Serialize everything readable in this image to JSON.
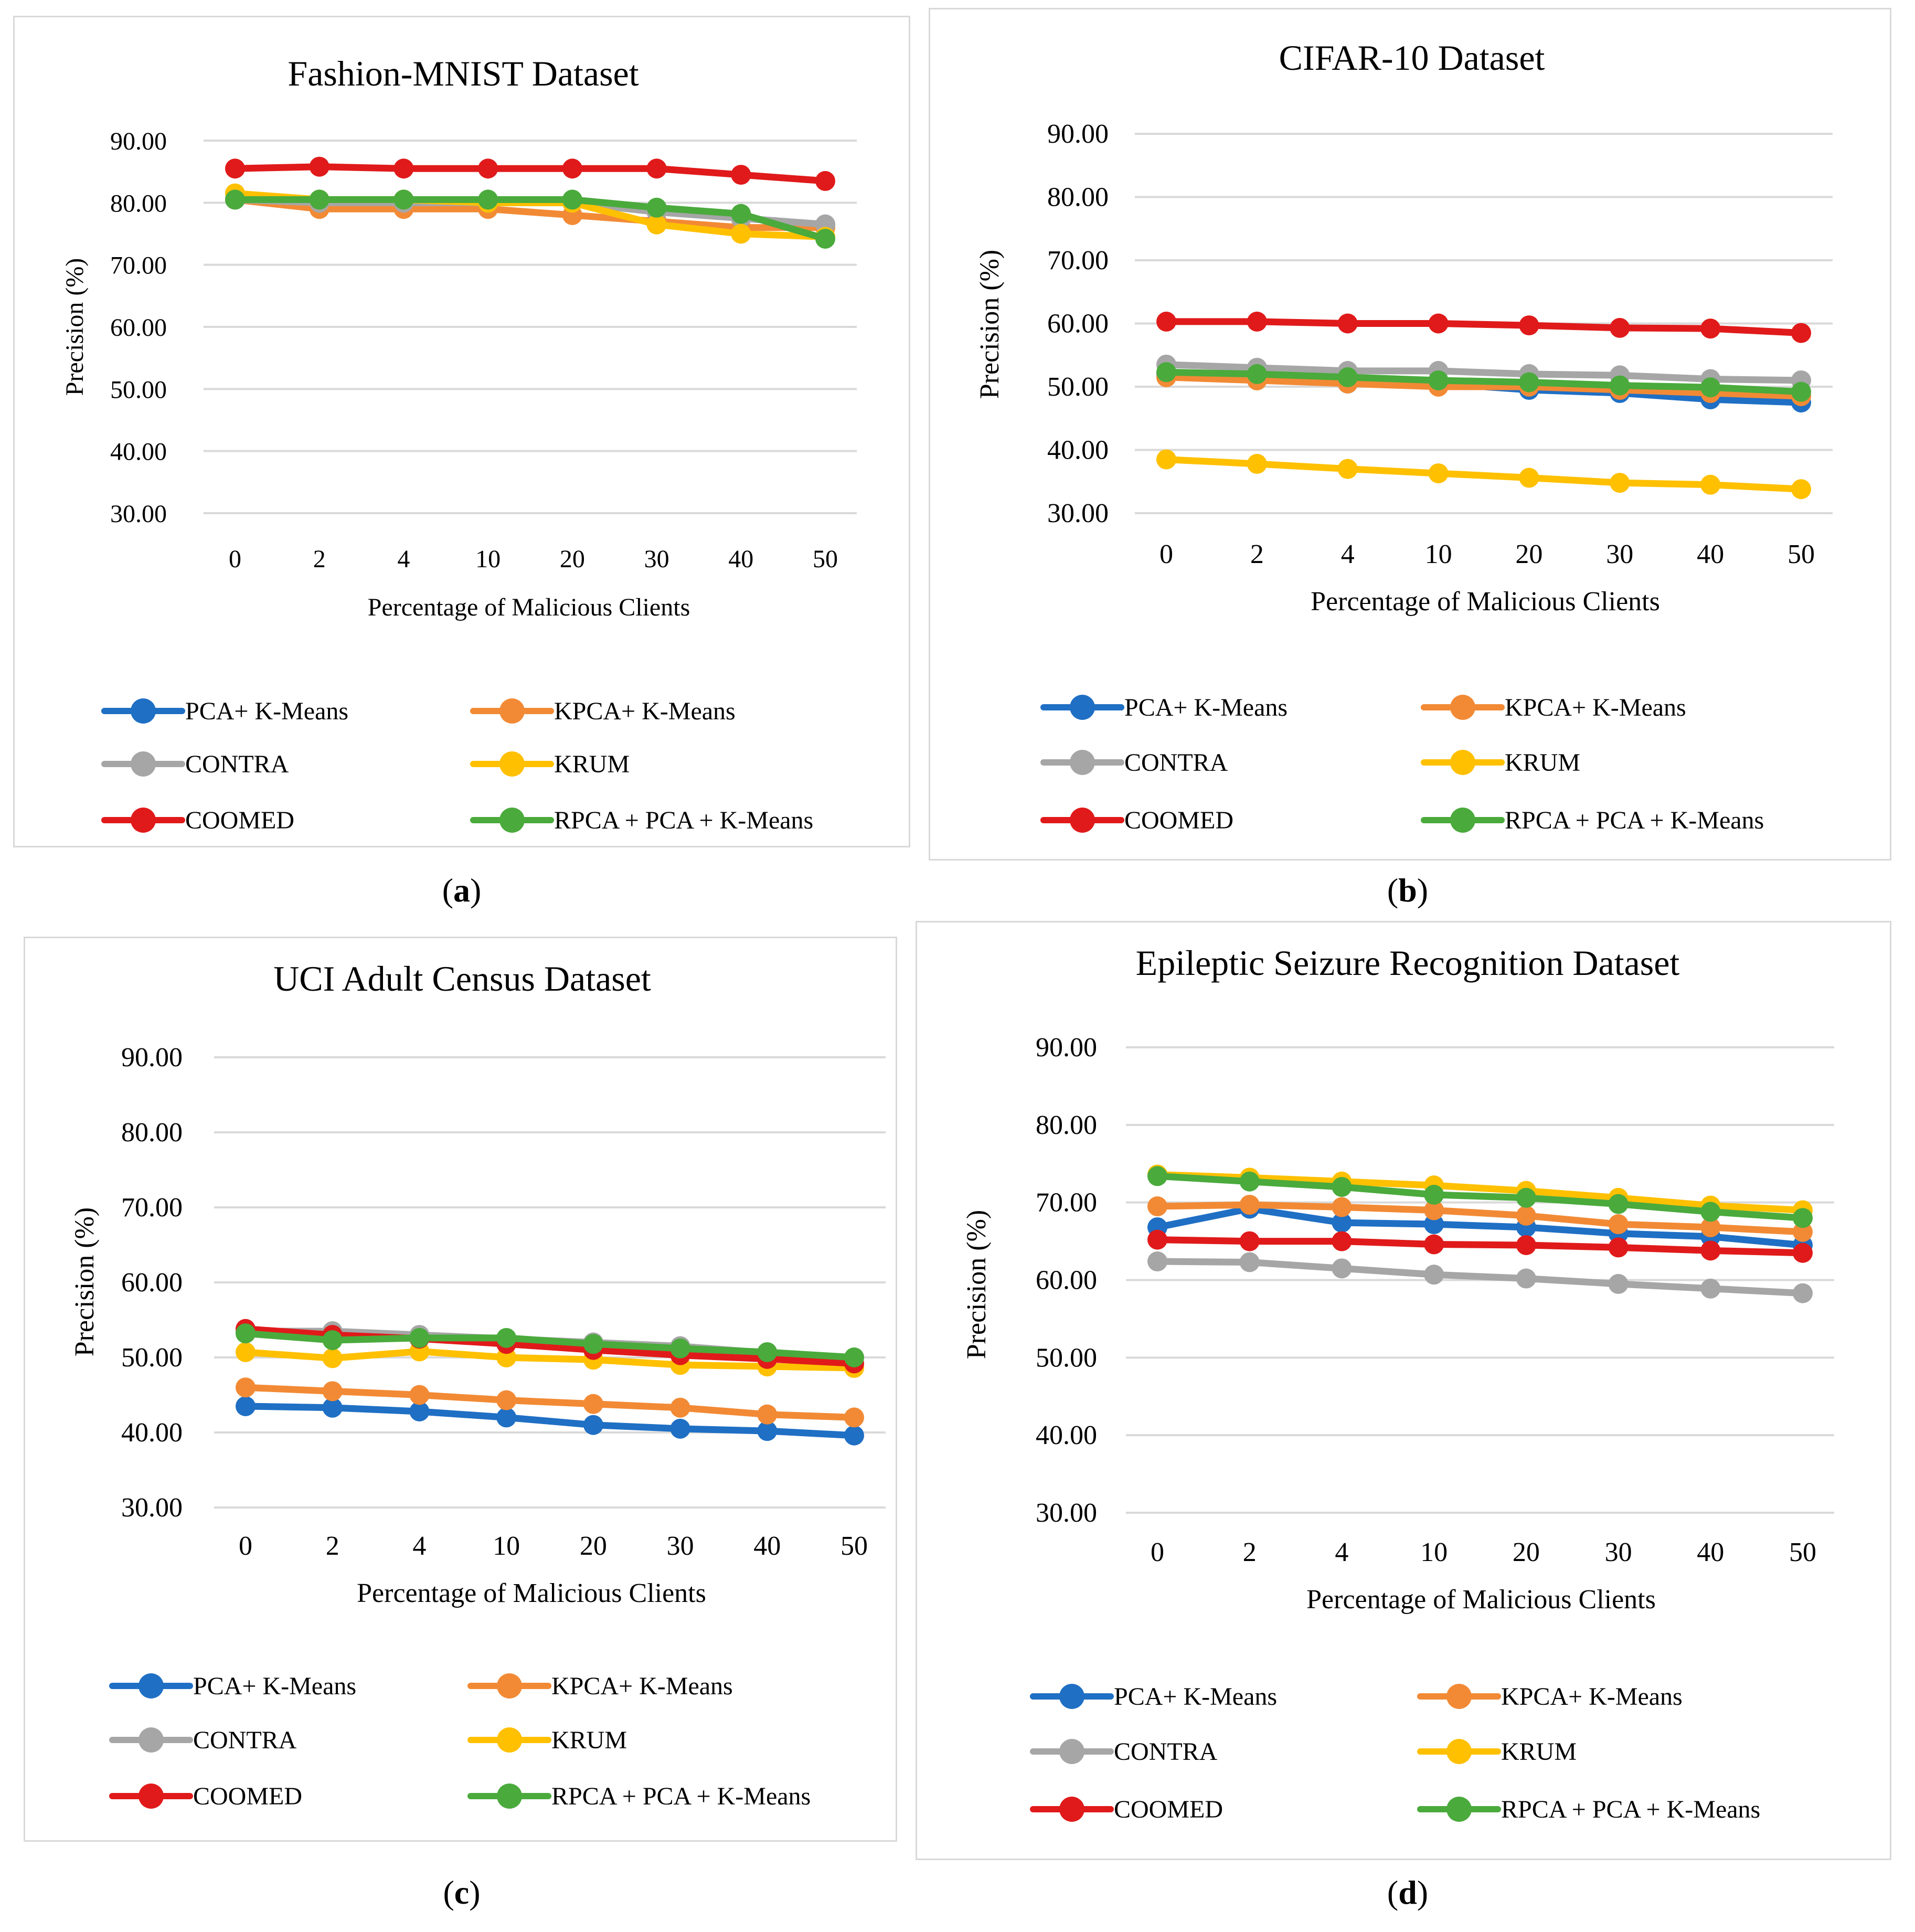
{
  "figure": {
    "series_names": [
      "PCA+ K-Means",
      "KPCA+ K-Means",
      "CONTRA",
      "KRUM",
      "COOMED",
      "RPCA + PCA + K-Means"
    ],
    "colors": {
      "PCA+ K-Means": "#1f6fc4",
      "KPCA+ K-Means": "#f28a35",
      "CONTRA": "#a6a6a6",
      "KRUM": "#ffc000",
      "COOMED": "#e01a1a",
      "RPCA + PCA + K-Means": "#4aaa3c"
    }
  },
  "chart_data": [
    {
      "id": "a",
      "type": "line",
      "caption_label": "a",
      "title": "Fashion-MNIST Dataset",
      "xlabel": "Percentage of Malicious Clients",
      "ylabel": "Precision (%)",
      "categories": [
        "0",
        "2",
        "4",
        "10",
        "20",
        "30",
        "40",
        "50"
      ],
      "yticks": [
        "30.00",
        "40.00",
        "50.00",
        "60.00",
        "70.00",
        "80.00",
        "90.00"
      ],
      "ylim": [
        30,
        90
      ],
      "grid": true,
      "legend_position": "bottom",
      "series": [
        {
          "name": "PCA+ K-Means",
          "values": [
            80.5,
            80.0,
            80.0,
            80.0,
            80.0,
            79.0,
            77.5,
            76.5
          ]
        },
        {
          "name": "KPCA+ K-Means",
          "values": [
            80.5,
            79.0,
            79.0,
            79.0,
            78.0,
            77.0,
            76.0,
            76.0
          ]
        },
        {
          "name": "CONTRA",
          "values": [
            80.5,
            80.0,
            80.0,
            80.0,
            80.0,
            78.5,
            77.5,
            76.5
          ]
        },
        {
          "name": "KRUM",
          "values": [
            81.5,
            80.5,
            80.5,
            80.0,
            80.0,
            76.5,
            75.0,
            74.5
          ]
        },
        {
          "name": "COOMED",
          "values": [
            85.5,
            85.8,
            85.5,
            85.5,
            85.5,
            85.5,
            84.5,
            83.5
          ]
        },
        {
          "name": "RPCA + PCA + K-Means",
          "values": [
            80.5,
            80.5,
            80.5,
            80.5,
            80.5,
            79.2,
            78.2,
            74.2
          ]
        }
      ]
    },
    {
      "id": "b",
      "type": "line",
      "caption_label": "b",
      "title": "CIFAR-10 Dataset",
      "xlabel": "Percentage of Malicious Clients",
      "ylabel": "Precision (%)",
      "categories": [
        "0",
        "2",
        "4",
        "10",
        "20",
        "30",
        "40",
        "50"
      ],
      "yticks": [
        "30.00",
        "40.00",
        "50.00",
        "60.00",
        "70.00",
        "80.00",
        "90.00"
      ],
      "ylim": [
        30,
        90
      ],
      "grid": true,
      "legend_position": "bottom",
      "series": [
        {
          "name": "PCA+ K-Means",
          "values": [
            52.0,
            51.5,
            50.5,
            50.5,
            49.5,
            49.0,
            48.0,
            47.5
          ]
        },
        {
          "name": "KPCA+ K-Means",
          "values": [
            51.5,
            51.0,
            50.5,
            50.0,
            50.0,
            49.5,
            49.0,
            48.5
          ]
        },
        {
          "name": "CONTRA",
          "values": [
            53.5,
            53.0,
            52.5,
            52.5,
            52.0,
            51.8,
            51.2,
            51.0
          ]
        },
        {
          "name": "KRUM",
          "values": [
            38.5,
            37.8,
            37.0,
            36.3,
            35.6,
            34.8,
            34.5,
            33.8
          ]
        },
        {
          "name": "COOMED",
          "values": [
            60.3,
            60.3,
            60.0,
            60.0,
            59.7,
            59.3,
            59.2,
            58.5
          ]
        },
        {
          "name": "RPCA + PCA + K-Means",
          "values": [
            52.3,
            52.0,
            51.5,
            51.0,
            50.7,
            50.2,
            49.9,
            49.2
          ]
        }
      ]
    },
    {
      "id": "c",
      "type": "line",
      "caption_label": "c",
      "title": "UCI Adult Census Dataset",
      "xlabel": "Percentage of Malicious Clients",
      "ylabel": "Precision (%)",
      "categories": [
        "0",
        "2",
        "4",
        "10",
        "20",
        "30",
        "40",
        "50"
      ],
      "yticks": [
        "30.00",
        "40.00",
        "50.00",
        "60.00",
        "70.00",
        "80.00",
        "90.00"
      ],
      "ylim": [
        30,
        90
      ],
      "grid": true,
      "legend_position": "bottom",
      "series": [
        {
          "name": "PCA+ K-Means",
          "values": [
            43.5,
            43.3,
            42.8,
            42.0,
            41.0,
            40.5,
            40.2,
            39.6
          ]
        },
        {
          "name": "KPCA+ K-Means",
          "values": [
            46.0,
            45.5,
            45.0,
            44.3,
            43.8,
            43.3,
            42.4,
            42.0
          ]
        },
        {
          "name": "CONTRA",
          "values": [
            53.5,
            53.5,
            53.0,
            52.5,
            52.0,
            51.5,
            50.6,
            50.0
          ]
        },
        {
          "name": "KRUM",
          "values": [
            50.7,
            49.9,
            50.8,
            50.0,
            49.7,
            49.0,
            48.8,
            48.6
          ]
        },
        {
          "name": "COOMED",
          "values": [
            53.8,
            53.0,
            52.5,
            51.8,
            51.0,
            50.3,
            49.8,
            49.2
          ]
        },
        {
          "name": "RPCA + PCA + K-Means",
          "values": [
            53.2,
            52.3,
            52.6,
            52.6,
            51.8,
            51.2,
            50.7,
            50.0
          ]
        }
      ]
    },
    {
      "id": "d",
      "type": "line",
      "caption_label": "d",
      "title": "Epileptic Seizure Recognition Dataset",
      "xlabel": "Percentage of Malicious Clients",
      "ylabel": "Precision (%)",
      "categories": [
        "0",
        "2",
        "4",
        "10",
        "20",
        "30",
        "40",
        "50"
      ],
      "yticks": [
        "30.00",
        "40.00",
        "50.00",
        "60.00",
        "70.00",
        "80.00",
        "90.00"
      ],
      "ylim": [
        30,
        90
      ],
      "grid": true,
      "legend_position": "bottom",
      "series": [
        {
          "name": "PCA+ K-Means",
          "values": [
            66.8,
            69.2,
            67.4,
            67.2,
            66.8,
            66.0,
            65.6,
            64.5
          ]
        },
        {
          "name": "KPCA+ K-Means",
          "values": [
            69.5,
            69.7,
            69.4,
            69.0,
            68.3,
            67.2,
            66.8,
            66.2
          ]
        },
        {
          "name": "CONTRA",
          "values": [
            62.4,
            62.3,
            61.5,
            60.7,
            60.2,
            59.5,
            58.9,
            58.3
          ]
        },
        {
          "name": "KRUM",
          "values": [
            73.6,
            73.2,
            72.7,
            72.2,
            71.5,
            70.6,
            69.6,
            69.0
          ]
        },
        {
          "name": "COOMED",
          "values": [
            65.2,
            65.0,
            65.0,
            64.6,
            64.5,
            64.2,
            63.8,
            63.5
          ]
        },
        {
          "name": "RPCA + PCA + K-Means",
          "values": [
            73.4,
            72.7,
            72.0,
            71.0,
            70.6,
            69.8,
            68.8,
            68.0
          ]
        }
      ]
    }
  ]
}
